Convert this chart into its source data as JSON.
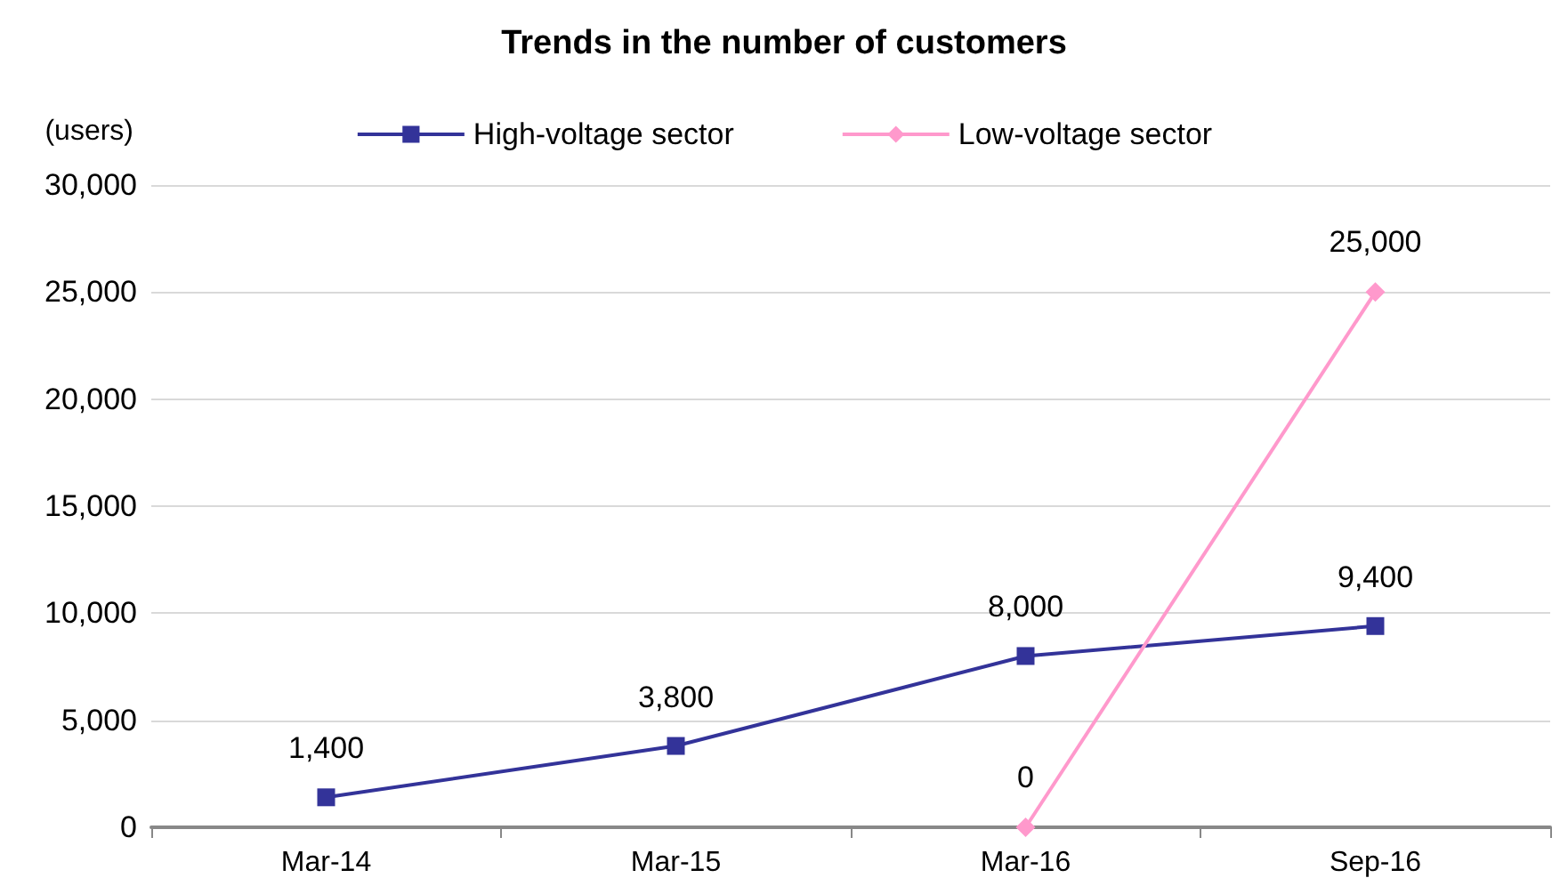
{
  "chart_data": {
    "type": "line",
    "title": "Trends in the number of customers",
    "ylabel": "(users)",
    "categories": [
      "Mar-14",
      "Mar-15",
      "Mar-16",
      "Sep-16"
    ],
    "series": [
      {
        "name": "High-voltage sector",
        "color": "#333399",
        "marker": "square",
        "values": [
          1400,
          3800,
          8000,
          9400
        ],
        "value_labels": [
          "1,400",
          "3,800",
          "8,000",
          "9,400"
        ]
      },
      {
        "name": "Low-voltage sector",
        "color": "#ff99cc",
        "marker": "diamond",
        "values": [
          null,
          null,
          0,
          25000
        ],
        "value_labels": [
          null,
          null,
          "0",
          "25,000"
        ]
      }
    ],
    "ylim": [
      0,
      30000
    ],
    "yticks": [
      0,
      {
        "value": 5000,
        "label": "5,000"
      },
      {
        "value": 10000,
        "label": "10,000"
      },
      {
        "value": 15000,
        "label": "15,000"
      },
      {
        "value": 20000,
        "label": "20,000"
      },
      {
        "value": 25000,
        "label": "25,000"
      },
      {
        "value": 30000,
        "label": "30,000"
      }
    ],
    "grid": "y",
    "legend": "top"
  }
}
